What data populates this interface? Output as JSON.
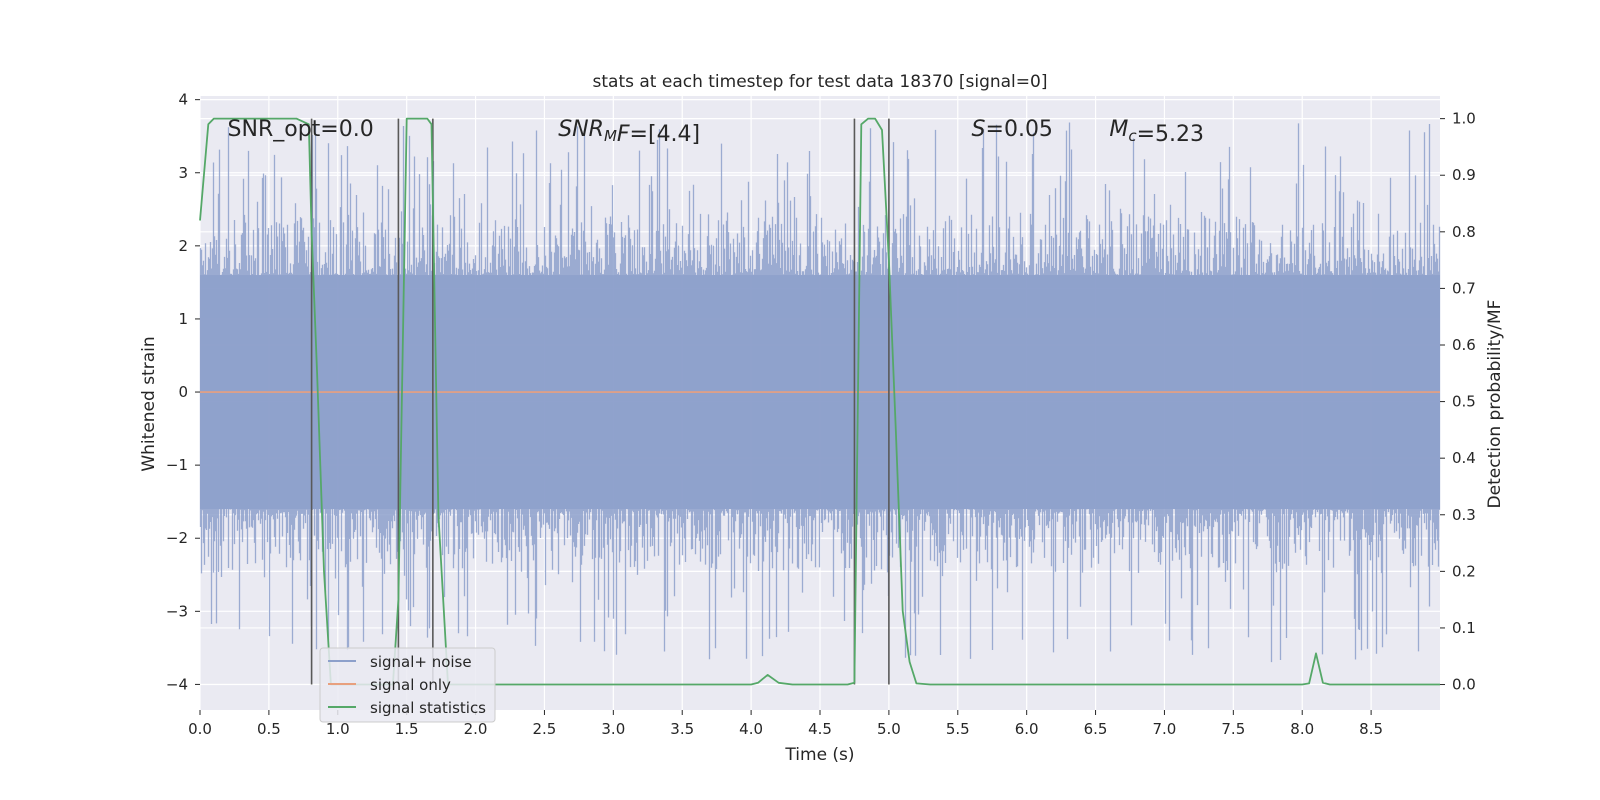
{
  "chart_data": {
    "type": "line",
    "title": "stats at each timestep for test data 18370 [signal=0]",
    "xlabel": "Time (s)",
    "ylabel": "Whitened strain",
    "y2label": "Detection probability/MF",
    "xlim": [
      0.0,
      9.0
    ],
    "ylim": [
      -4.35,
      4.05
    ],
    "y2lim": [
      -0.045,
      1.04
    ],
    "xticks": [
      0.0,
      0.5,
      1.0,
      1.5,
      2.0,
      2.5,
      3.0,
      3.5,
      4.0,
      4.5,
      5.0,
      5.5,
      6.0,
      6.5,
      7.0,
      7.5,
      8.0,
      8.5
    ],
    "xtick_labels": [
      "0.0",
      "0.5",
      "1.0",
      "1.5",
      "2.0",
      "2.5",
      "3.0",
      "3.5",
      "4.0",
      "4.5",
      "5.0",
      "5.5",
      "6.0",
      "6.5",
      "7.0",
      "7.5",
      "8.0",
      "8.5"
    ],
    "yticks": [
      4,
      3,
      2,
      1,
      0,
      -1,
      -2,
      -3,
      -4
    ],
    "ytick_labels": [
      "4",
      "3",
      "2",
      "1",
      "0",
      "−1",
      "−2",
      "−3",
      "−4"
    ],
    "y2ticks": [
      1.0,
      0.9,
      0.8,
      0.7,
      0.6,
      0.5,
      0.4,
      0.3,
      0.2,
      0.1,
      0.0
    ],
    "y2tick_labels": [
      "1.0",
      "0.9",
      "0.8",
      "0.7",
      "0.6",
      "0.5",
      "0.4",
      "0.3",
      "0.2",
      "0.1",
      "0.0"
    ],
    "grid": true,
    "legend_position": "lower-left",
    "series": [
      {
        "name": "signal+ noise",
        "color": "#8da0cb",
        "kind": "noise band",
        "axis": "left",
        "typical_range": [
          -1.6,
          1.6
        ],
        "peak_range": [
          -3.7,
          3.7
        ]
      },
      {
        "name": "signal only",
        "color": "#e8a07e",
        "axis": "left",
        "x": [
          0.0,
          9.0
        ],
        "y": [
          0.0,
          0.0
        ]
      },
      {
        "name": "signal statistics",
        "color": "#55a868",
        "axis": "right",
        "x": [
          0.0,
          0.06,
          0.1,
          0.2,
          0.3,
          0.5,
          0.7,
          0.79,
          0.81,
          0.85,
          0.9,
          0.95,
          1.0,
          1.05,
          1.4,
          1.44,
          1.5,
          1.6,
          1.65,
          1.68,
          1.73,
          1.8,
          2.0,
          3.0,
          4.0,
          4.05,
          4.12,
          4.2,
          4.3,
          4.5,
          4.7,
          4.75,
          4.8,
          4.85,
          4.9,
          4.95,
          5.0,
          5.05,
          5.1,
          5.15,
          5.2,
          5.3,
          5.5,
          6.0,
          7.0,
          8.0,
          8.05,
          8.1,
          8.15,
          8.2,
          8.3,
          8.5,
          8.8,
          9.0
        ],
        "y": [
          0.82,
          0.99,
          1.0,
          1.0,
          1.0,
          1.0,
          1.0,
          0.99,
          0.8,
          0.55,
          0.2,
          0.0,
          0.0,
          0.0,
          0.0,
          0.15,
          1.0,
          1.0,
          1.0,
          0.99,
          0.3,
          0.0,
          0.0,
          0.0,
          0.0,
          0.003,
          0.017,
          0.003,
          0.0,
          0.0,
          0.0,
          0.003,
          0.99,
          1.0,
          1.0,
          0.98,
          0.75,
          0.45,
          0.13,
          0.04,
          0.002,
          0.0,
          0.0,
          0.0,
          0.0,
          0.0,
          0.002,
          0.055,
          0.003,
          0.0,
          0.0,
          0.0,
          0.0,
          0.0
        ]
      }
    ],
    "vertical_lines_x": [
      0.81,
      1.44,
      1.69,
      4.75,
      5.0
    ],
    "vertical_lines_color": "#595959",
    "annotations": [
      {
        "parts": [
          {
            "text": "SNR_opt=0.0"
          }
        ],
        "x": 0.2,
        "y": 3.6
      },
      {
        "parts": [
          {
            "text": "SNR",
            "italic": true
          },
          {
            "text": "M",
            "italic": true,
            "sub": true
          },
          {
            "text": "F",
            "italic": true
          },
          {
            "text": "=[4.4]"
          }
        ],
        "x": 2.6,
        "y": 3.6
      },
      {
        "parts": [
          {
            "text": "S",
            "italic": true
          },
          {
            "text": "=0.05"
          }
        ],
        "x": 5.6,
        "y": 3.6
      },
      {
        "parts": [
          {
            "text": "M",
            "italic": true
          },
          {
            "text": "c",
            "italic": true,
            "sub": true
          },
          {
            "text": "=5.23"
          }
        ],
        "x": 6.6,
        "y": 3.6
      }
    ]
  }
}
